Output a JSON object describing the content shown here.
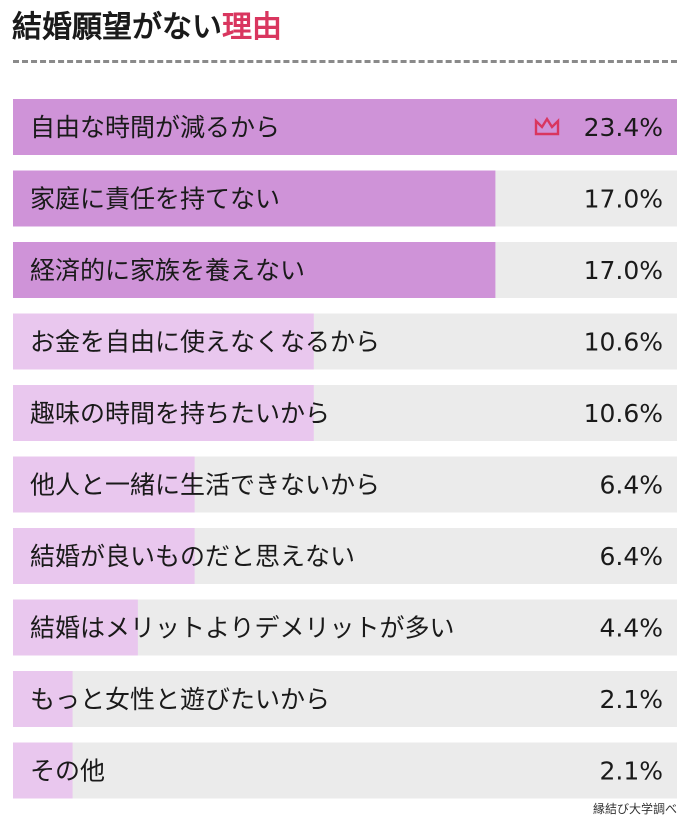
{
  "title": {
    "main": "結婚願望がない",
    "accent": "理由"
  },
  "source": "縁結び大学調べ",
  "colors": {
    "accent": "#d9365f",
    "bar_top": "#cf93d8",
    "bar_mid": "#e9c7ee",
    "track": "#ebebeb"
  },
  "top_marker_icon": "crown-icon",
  "chart_data": {
    "type": "bar",
    "orientation": "horizontal",
    "categories": [
      "自由な時間が減るから",
      "家庭に責任を持てない",
      "経済的に家族を養えない",
      "お金を自由に使えなくなるから",
      "趣味の時間を持ちたいから",
      "他人と一緒に生活できないから",
      "結婚が良いものだと思えない",
      "結婚はメリットよりデメリットが多い",
      "もっと女性と遊びたいから",
      "その他"
    ],
    "values": [
      23.4,
      17.0,
      17.0,
      10.6,
      10.6,
      6.4,
      6.4,
      4.4,
      2.1,
      2.1
    ],
    "value_labels": [
      "23.4%",
      "17.0%",
      "17.0%",
      "10.6%",
      "10.6%",
      "6.4%",
      "6.4%",
      "4.4%",
      "2.1%",
      "2.1%"
    ],
    "xlim": [
      0,
      23.4
    ],
    "unit": "%"
  }
}
